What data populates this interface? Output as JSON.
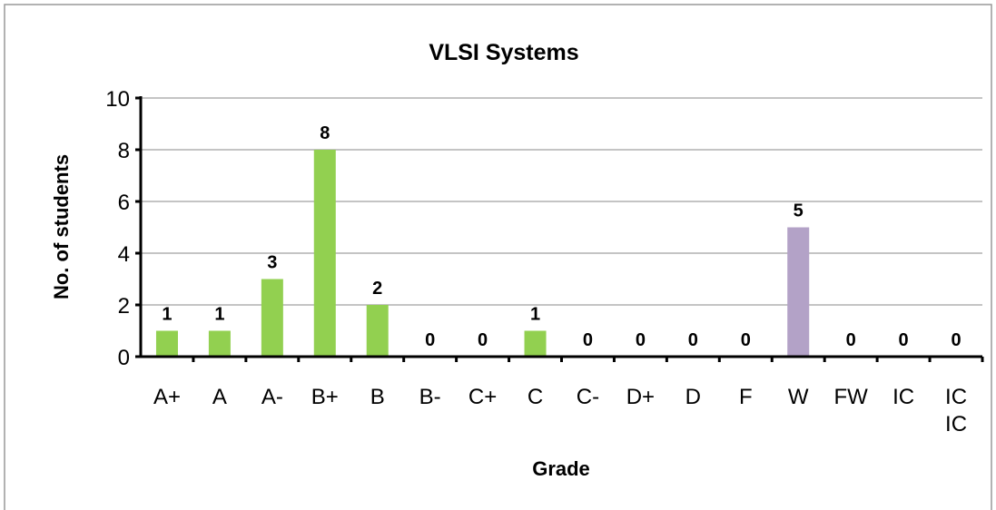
{
  "chart_data": {
    "type": "bar",
    "title": "VLSI Systems",
    "x_label": "Grade",
    "y_label": "No. of students",
    "categories": [
      "A+",
      "A",
      "A-",
      "B+",
      "B",
      "B-",
      "C+",
      "C",
      "C-",
      "D+",
      "D",
      "F",
      "W",
      "FW",
      "IC",
      "IC IC"
    ],
    "values": [
      1,
      1,
      3,
      8,
      2,
      0,
      0,
      1,
      0,
      0,
      0,
      0,
      5,
      0,
      0,
      0
    ],
    "colors": [
      "#92d050",
      "#92d050",
      "#92d050",
      "#92d050",
      "#92d050",
      "#92d050",
      "#92d050",
      "#92d050",
      "#92d050",
      "#92d050",
      "#92d050",
      "#92d050",
      "#b3a2c7",
      "#92d050",
      "#92d050",
      "#92d050"
    ],
    "ylim": [
      0,
      10
    ],
    "yticks": [
      0,
      2,
      4,
      6,
      8,
      10
    ],
    "grid": true
  }
}
